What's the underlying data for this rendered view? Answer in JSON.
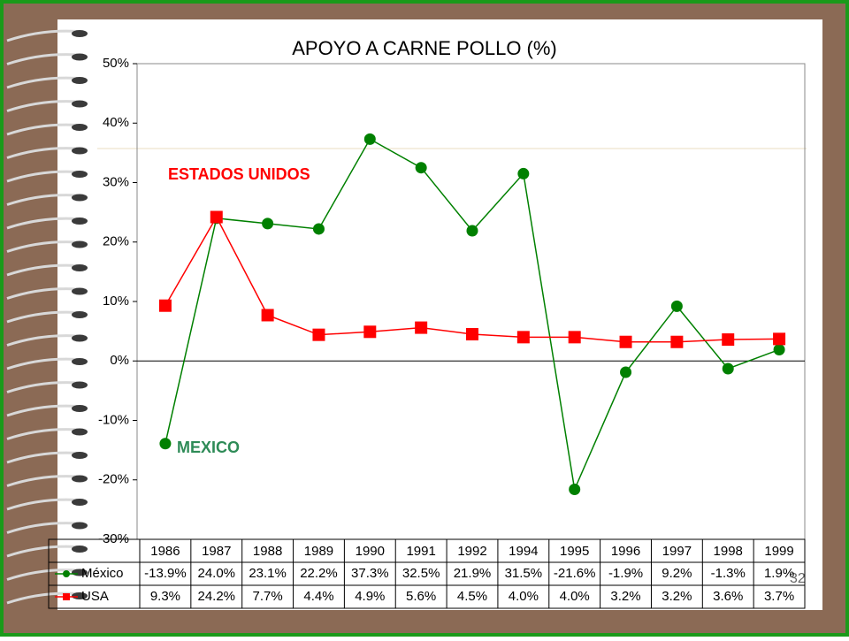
{
  "chart_data": {
    "type": "line",
    "title": "APOYO A CARNE POLLO (%)",
    "categories": [
      "1986",
      "1987",
      "1988",
      "1989",
      "1990",
      "1991",
      "1992",
      "1994",
      "1995",
      "1996",
      "1997",
      "1998",
      "1999"
    ],
    "series": [
      {
        "name": "México",
        "color": "#008000",
        "marker": "circle",
        "values": [
          -13.9,
          24.0,
          23.1,
          22.2,
          37.3,
          32.5,
          21.9,
          31.5,
          -21.6,
          -1.9,
          9.2,
          -1.3,
          1.9
        ],
        "value_labels": [
          "-13.9%",
          "24.0%",
          "23.1%",
          "22.2%",
          "37.3%",
          "32.5%",
          "21.9%",
          "31.5%",
          "-21.6%",
          "-1.9%",
          "9.2%",
          "-1.3%",
          "1.9%"
        ]
      },
      {
        "name": "USA",
        "color": "#ff0000",
        "marker": "square",
        "values": [
          9.3,
          24.2,
          7.7,
          4.4,
          4.9,
          5.6,
          4.5,
          4.0,
          4.0,
          3.2,
          3.2,
          3.6,
          3.7
        ],
        "value_labels": [
          "9.3%",
          "24.2%",
          "7.7%",
          "4.4%",
          "4.9%",
          "5.6%",
          "4.5%",
          "4.0%",
          "4.0%",
          "3.2%",
          "3.2%",
          "3.6%",
          "3.7%"
        ]
      }
    ],
    "ylim": [
      -30,
      50
    ],
    "yticks": [
      {
        "value": -30,
        "label": "-30%"
      },
      {
        "value": -20,
        "label": "-20%"
      },
      {
        "value": -10,
        "label": "-10%"
      },
      {
        "value": 0,
        "label": "0%"
      },
      {
        "value": 10,
        "label": "10%"
      },
      {
        "value": 20,
        "label": "20%"
      },
      {
        "value": 30,
        "label": "30%"
      },
      {
        "value": 40,
        "label": "40%"
      },
      {
        "value": 50,
        "label": "50%"
      }
    ],
    "grid": false,
    "annotations": [
      {
        "text": "ESTADOS UNIDOS",
        "color": "#ff0000"
      },
      {
        "text": "MEXICO",
        "color": "#2e8b57"
      }
    ],
    "slide_number": "32"
  }
}
